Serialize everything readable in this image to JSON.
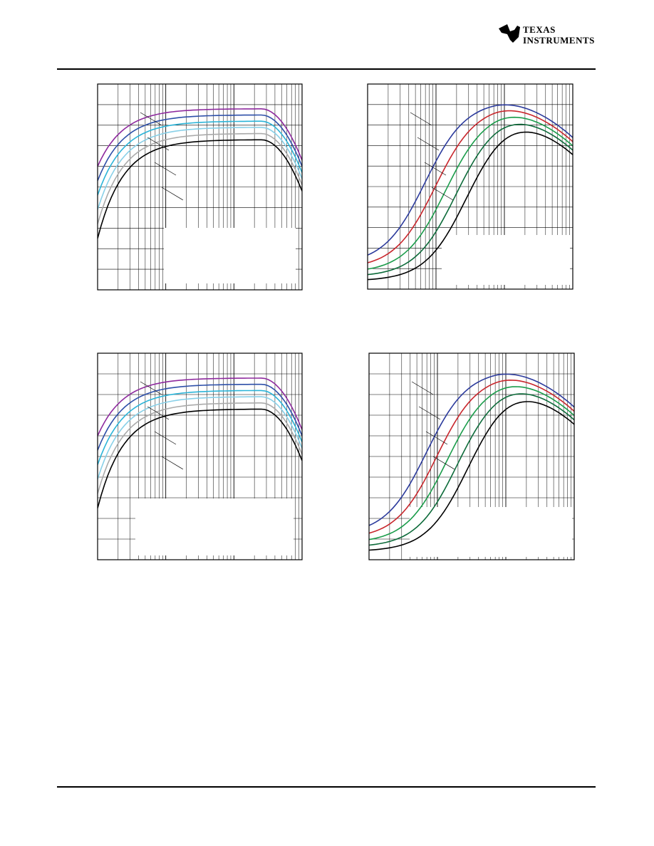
{
  "header": {
    "logo_line1": "Texas",
    "logo_line2": "Instruments"
  }
}
